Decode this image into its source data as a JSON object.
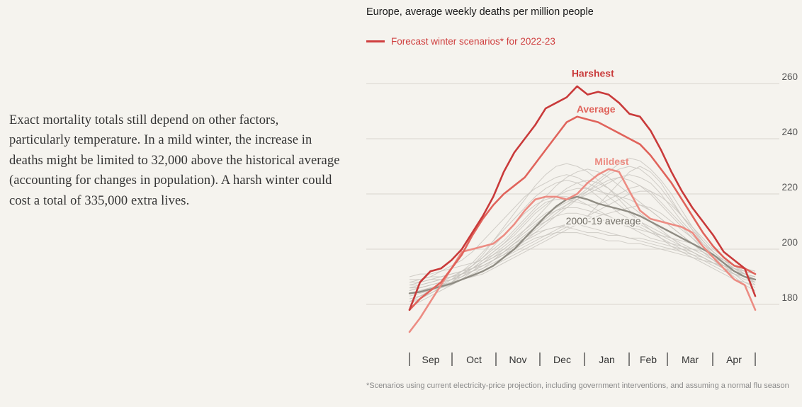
{
  "article": {
    "paragraph": "Exact mortality totals still depend on other factors, particularly temperature. In a mild winter, the increase in deaths might be limited to 32,000 above the historical average (accounting for changes in population). A harsh winter could cost a total of 335,000 extra lives."
  },
  "footnote": "*Scenarios using current electricity-price projection, including government interventions, and assuming a normal flu season",
  "chart_data": {
    "type": "line",
    "title": "Europe, average weekly deaths per million people",
    "legend": [
      {
        "label": "Forecast winter scenarios* for 2022-23",
        "color": "#cf3e3e"
      }
    ],
    "legend_position": "top-left",
    "x_unit": "week",
    "x_range": [
      0,
      33
    ],
    "ylim": [
      170,
      262
    ],
    "y_ticks": [
      180,
      200,
      220,
      240,
      260
    ],
    "y_tick_side": "right",
    "grid": true,
    "x_labels": [
      {
        "label": "Sep",
        "x": 1.5
      },
      {
        "label": "Oct",
        "x": 6
      },
      {
        "label": "Nov",
        "x": 10.5
      },
      {
        "label": "Dec",
        "x": 15
      },
      {
        "label": "Jan",
        "x": 19.5
      },
      {
        "label": "Feb",
        "x": 24
      },
      {
        "label": "Mar",
        "x": 28
      },
      {
        "label": "Apr",
        "x": 32.5
      }
    ],
    "x_tick_separators": [
      0,
      4.5,
      9,
      13.5,
      18,
      22.5,
      27,
      29.5,
      35
    ],
    "series": [
      {
        "name": "Harshest",
        "role": "scenario",
        "color": "#c93a3a",
        "x": [
          0,
          1,
          2,
          3,
          4,
          5,
          6,
          7,
          8,
          9,
          10,
          11,
          12,
          13,
          14,
          15,
          16,
          17,
          18,
          19,
          20,
          21,
          22,
          23,
          24,
          25,
          26,
          27,
          28,
          29,
          30,
          31,
          32,
          33
        ],
        "values": [
          178,
          188,
          192,
          193,
          196,
          200,
          206,
          212,
          219,
          228,
          235,
          240,
          245,
          251,
          253,
          255,
          259,
          256,
          257,
          256,
          253,
          249,
          248,
          243,
          236,
          228,
          221,
          215,
          210,
          205,
          199,
          196,
          193,
          183
        ]
      },
      {
        "name": "Average",
        "role": "scenario",
        "color": "#e0635b",
        "x": [
          0,
          1,
          2,
          3,
          4,
          5,
          6,
          7,
          8,
          9,
          10,
          11,
          12,
          13,
          14,
          15,
          16,
          17,
          18,
          19,
          20,
          21,
          22,
          23,
          24,
          25,
          26,
          27,
          28,
          29,
          30,
          31,
          32,
          33
        ],
        "values": [
          178,
          182,
          185,
          188,
          193,
          198,
          205,
          211,
          216,
          220,
          223,
          226,
          231,
          236,
          241,
          246,
          248,
          247,
          246,
          244,
          242,
          240,
          238,
          234,
          229,
          224,
          218,
          212,
          206,
          201,
          197,
          194,
          193,
          191
        ]
      },
      {
        "name": "Mildest",
        "role": "scenario",
        "color": "#ec8c83",
        "x": [
          0,
          1,
          2,
          3,
          4,
          5,
          6,
          7,
          8,
          9,
          10,
          11,
          12,
          13,
          14,
          15,
          16,
          17,
          18,
          19,
          20,
          21,
          22,
          23,
          24,
          25,
          26,
          27,
          28,
          29,
          30,
          31,
          32,
          33
        ],
        "values": [
          170,
          175,
          181,
          187,
          193,
          199,
          200,
          201,
          202,
          205,
          209,
          214,
          218,
          219,
          219,
          218,
          220,
          224,
          227,
          229,
          228,
          221,
          214,
          211,
          210,
          209,
          208,
          206,
          201,
          197,
          193,
          189,
          187,
          178
        ]
      },
      {
        "name": "2000-19 average",
        "role": "baseline",
        "color": "#8f8c83",
        "x": [
          0,
          1,
          2,
          3,
          4,
          5,
          6,
          7,
          8,
          9,
          10,
          11,
          12,
          13,
          14,
          15,
          16,
          17,
          18,
          19,
          20,
          21,
          22,
          23,
          24,
          25,
          26,
          27,
          28,
          29,
          30,
          31,
          32,
          33
        ],
        "values": [
          184,
          184.5,
          185.5,
          186.5,
          187.5,
          189,
          190.5,
          192,
          194,
          197,
          200,
          204,
          208,
          212,
          215.5,
          218,
          219,
          218,
          216.5,
          215.5,
          214.5,
          213.5,
          212,
          210,
          208,
          206,
          204,
          202,
          200,
          198,
          195,
          192,
          190,
          189
        ]
      }
    ],
    "historical_years": [
      [
        188,
        189,
        190,
        192,
        194,
        196,
        199,
        203,
        207,
        211,
        215,
        219,
        222,
        224,
        226,
        227,
        226,
        224,
        222,
        219,
        216,
        213,
        210,
        208,
        206,
        204,
        202,
        200,
        198,
        196,
        194,
        193,
        192,
        191
      ],
      [
        182,
        183,
        184,
        186,
        188,
        191,
        194,
        198,
        203,
        208,
        213,
        218,
        223,
        227,
        230,
        231,
        230,
        228,
        225,
        222,
        218,
        214,
        210,
        207,
        204,
        201,
        199,
        197,
        195,
        193,
        191,
        189,
        188,
        187
      ],
      [
        186,
        186,
        187,
        188,
        189,
        190,
        192,
        194,
        196,
        199,
        202,
        204,
        206,
        207,
        208,
        208,
        207,
        206,
        206,
        205,
        205,
        204,
        204,
        203,
        202,
        201,
        200,
        199,
        197,
        195,
        193,
        191,
        190,
        188
      ],
      [
        180,
        182,
        184,
        186,
        188,
        190,
        193,
        196,
        199,
        202,
        205,
        209,
        213,
        216,
        219,
        221,
        222,
        222,
        221,
        220,
        219,
        218,
        216,
        214,
        211,
        208,
        205,
        202,
        199,
        196,
        193,
        190,
        187,
        185
      ],
      [
        184,
        185,
        186,
        187,
        188,
        189,
        190,
        191,
        193,
        195,
        197,
        199,
        201,
        203,
        205,
        207,
        209,
        212,
        216,
        220,
        224,
        228,
        230,
        228,
        224,
        218,
        212,
        207,
        202,
        198,
        195,
        192,
        190,
        189
      ],
      [
        190,
        191,
        191,
        192,
        193,
        194,
        195,
        196,
        198,
        200,
        203,
        206,
        209,
        212,
        214,
        215,
        215,
        214,
        213,
        212,
        210,
        209,
        208,
        206,
        204,
        202,
        200,
        198,
        196,
        194,
        192,
        191,
        190,
        189
      ],
      [
        181,
        183,
        185,
        187,
        189,
        191,
        193,
        196,
        199,
        202,
        206,
        210,
        214,
        217,
        218,
        218,
        217,
        216,
        216,
        218,
        220,
        222,
        223,
        221,
        217,
        213,
        209,
        205,
        201,
        198,
        195,
        192,
        190,
        188
      ],
      [
        185,
        186,
        187,
        188,
        190,
        192,
        194,
        197,
        200,
        203,
        207,
        211,
        215,
        219,
        223,
        226,
        228,
        229,
        228,
        226,
        223,
        220,
        217,
        214,
        211,
        208,
        205,
        202,
        199,
        196,
        194,
        192,
        190,
        188
      ],
      [
        188,
        188,
        189,
        189,
        190,
        191,
        192,
        193,
        195,
        197,
        199,
        201,
        203,
        205,
        207,
        209,
        210,
        211,
        212,
        213,
        214,
        215,
        216,
        215,
        213,
        210,
        207,
        204,
        201,
        198,
        196,
        194,
        193,
        192
      ],
      [
        183,
        184,
        185,
        186,
        187,
        189,
        191,
        193,
        196,
        199,
        202,
        205,
        208,
        211,
        214,
        216,
        218,
        220,
        222,
        224,
        226,
        227,
        226,
        224,
        220,
        215,
        210,
        206,
        202,
        199,
        196,
        193,
        190,
        187
      ],
      [
        187,
        188,
        189,
        190,
        191,
        192,
        193,
        195,
        197,
        199,
        201,
        203,
        205,
        207,
        208,
        209,
        209,
        208,
        207,
        206,
        205,
        204,
        203,
        202,
        201,
        200,
        199,
        198,
        197,
        195,
        193,
        192,
        191,
        190
      ],
      [
        179,
        181,
        183,
        185,
        187,
        189,
        192,
        195,
        198,
        201,
        204,
        207,
        210,
        213,
        215,
        217,
        219,
        221,
        223,
        225,
        226,
        225,
        223,
        220,
        216,
        212,
        208,
        204,
        200,
        197,
        194,
        191,
        188,
        186
      ],
      [
        186,
        186,
        187,
        188,
        189,
        191,
        193,
        195,
        197,
        200,
        203,
        207,
        211,
        215,
        219,
        222,
        224,
        225,
        224,
        222,
        219,
        216,
        213,
        210,
        207,
        204,
        201,
        199,
        197,
        195,
        193,
        192,
        191,
        190
      ],
      [
        184,
        185,
        186,
        187,
        188,
        189,
        190,
        192,
        194,
        196,
        198,
        200,
        202,
        204,
        206,
        208,
        210,
        212,
        214,
        216,
        218,
        220,
        221,
        221,
        219,
        216,
        212,
        208,
        204,
        200,
        197,
        194,
        191,
        189
      ],
      [
        189,
        189,
        190,
        190,
        191,
        192,
        193,
        194,
        196,
        198,
        200,
        202,
        204,
        205,
        206,
        206,
        206,
        205,
        204,
        203,
        203,
        202,
        202,
        201,
        200,
        199,
        198,
        197,
        196,
        195,
        194,
        193,
        192,
        191
      ],
      [
        182,
        183,
        185,
        187,
        189,
        192,
        195,
        199,
        203,
        207,
        211,
        215,
        219,
        222,
        224,
        225,
        224,
        222,
        219,
        216,
        213,
        211,
        209,
        207,
        205,
        203,
        201,
        199,
        197,
        195,
        193,
        191,
        189,
        188
      ],
      [
        185,
        186,
        187,
        188,
        189,
        190,
        192,
        194,
        196,
        198,
        201,
        204,
        207,
        210,
        213,
        216,
        219,
        222,
        225,
        228,
        231,
        233,
        232,
        229,
        225,
        220,
        214,
        208,
        203,
        199,
        196,
        193,
        191,
        190
      ],
      [
        187,
        187,
        188,
        189,
        190,
        191,
        193,
        195,
        197,
        199,
        202,
        205,
        208,
        210,
        212,
        213,
        213,
        212,
        211,
        210,
        209,
        208,
        207,
        206,
        205,
        204,
        203,
        202,
        200,
        198,
        196,
        194,
        193,
        192
      ],
      [
        181,
        182,
        184,
        186,
        188,
        191,
        194,
        197,
        201,
        205,
        209,
        213,
        216,
        218,
        219,
        219,
        218,
        216,
        214,
        212,
        210,
        208,
        206,
        204,
        203,
        202,
        201,
        200,
        199,
        197,
        195,
        193,
        191,
        189
      ],
      [
        186,
        187,
        188,
        189,
        190,
        191,
        192,
        194,
        196,
        198,
        200,
        203,
        206,
        209,
        212,
        215,
        218,
        221,
        224,
        227,
        229,
        230,
        229,
        226,
        222,
        217,
        212,
        207,
        203,
        199,
        196,
        194,
        192,
        191
      ]
    ],
    "historical_color": "#c9c6bf",
    "annotations": [
      {
        "text": "Harshest",
        "x": 17.5,
        "y": 262.5,
        "color": "#c93a3a"
      },
      {
        "text": "Average",
        "x": 17.8,
        "y": 249.5,
        "color": "#e0635b"
      },
      {
        "text": "Mildest",
        "x": 19.3,
        "y": 230.5,
        "color": "#ec8c83"
      },
      {
        "text": "2000-19 average",
        "x": 18.5,
        "y": 209,
        "color": "#6f6c64"
      }
    ]
  }
}
